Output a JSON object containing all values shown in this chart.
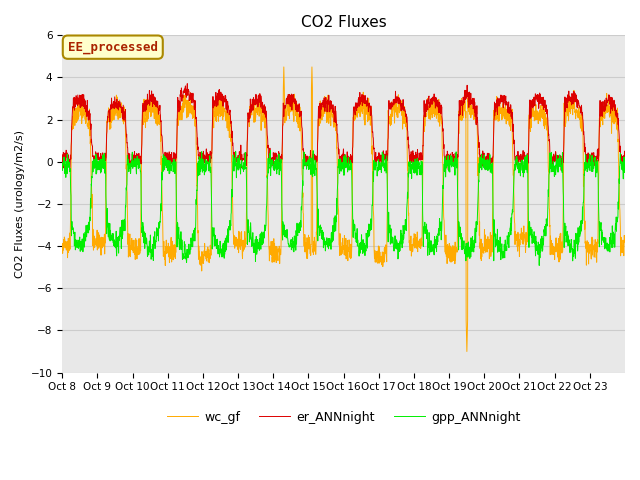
{
  "title": "CO2 Fluxes",
  "ylabel": "CO2 Fluxes (urology/m2/s)",
  "ylim": [
    -10,
    6
  ],
  "yticks": [
    -10,
    -8,
    -6,
    -4,
    -2,
    0,
    2,
    4,
    6
  ],
  "annotation_text": "EE_processed",
  "annotation_box_facecolor": "#ffffcc",
  "annotation_text_color": "#aa2200",
  "annotation_edge_color": "#aa8800",
  "legend_labels": [
    "gpp_ANNnight",
    "er_ANNnight",
    "wc_gf"
  ],
  "line_colors": [
    "#00ee00",
    "#dd0000",
    "#ffaa00"
  ],
  "background_color": "#e8e8e8",
  "figure_bg": "#ffffff",
  "n_days": 16,
  "ppd": 144,
  "xtick_labels": [
    "Oct 8",
    "Oct 9",
    "Oct 10",
    "Oct 11",
    "Oct 12",
    "Oct 13",
    "Oct 14",
    "Oct 15",
    "Oct 16",
    "Oct 17",
    "Oct 18",
    "Oct 19",
    "Oct 20",
    "Oct 21",
    "Oct 22",
    "Oct 23"
  ],
  "title_fontsize": 11,
  "axis_label_fontsize": 8,
  "tick_fontsize": 7.5
}
